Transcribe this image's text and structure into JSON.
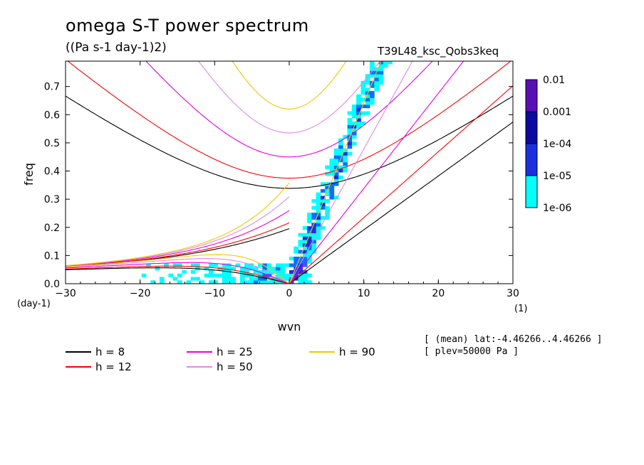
{
  "chart_data": {
    "type": "heatmap",
    "title": "omega S-T power spectrum",
    "subtitle": "((Pa s-1 day-1)2)",
    "run_name": "T39L48_ksc_Qobs3keq",
    "xlabel": "wvn",
    "xunit": "(1)",
    "ylabel": "freq",
    "yunit": "(day-1)",
    "xlim": [
      -30,
      30
    ],
    "ylim": [
      0,
      0.79
    ],
    "xticks": [
      -30,
      -20,
      -10,
      0,
      10,
      20,
      30
    ],
    "yticks": [
      0.0,
      0.1,
      0.2,
      0.3,
      0.4,
      0.5,
      0.6,
      0.7
    ],
    "ytick_labels": [
      "0.0",
      "0.1",
      "0.2",
      "0.3",
      "0.4",
      "0.5",
      "0.6",
      "0.7"
    ],
    "colorbar": {
      "levels": [
        "1e-06",
        "1e-05",
        "1e-04",
        "0.001",
        "0.01"
      ],
      "colors": [
        "#00ffff",
        "#0a6fff",
        "#1c2fe0",
        "#0a0aa0",
        "#5a0fb4"
      ]
    },
    "dispersion_curves": [
      {
        "label": "h =  8",
        "h": 8,
        "color": "#000000"
      },
      {
        "label": "h = 12",
        "h": 12,
        "color": "#ff0000"
      },
      {
        "label": "h = 25",
        "h": 25,
        "color": "#e600e6"
      },
      {
        "label": "h = 50",
        "h": 50,
        "color": "#e08ae0"
      },
      {
        "label": "h = 90",
        "h": 90,
        "color": "#f0c800"
      }
    ],
    "info": [
      "[ (mean) lat:-4.46266..4.46266 ]",
      "[ plev=50000 Pa ]"
    ]
  }
}
